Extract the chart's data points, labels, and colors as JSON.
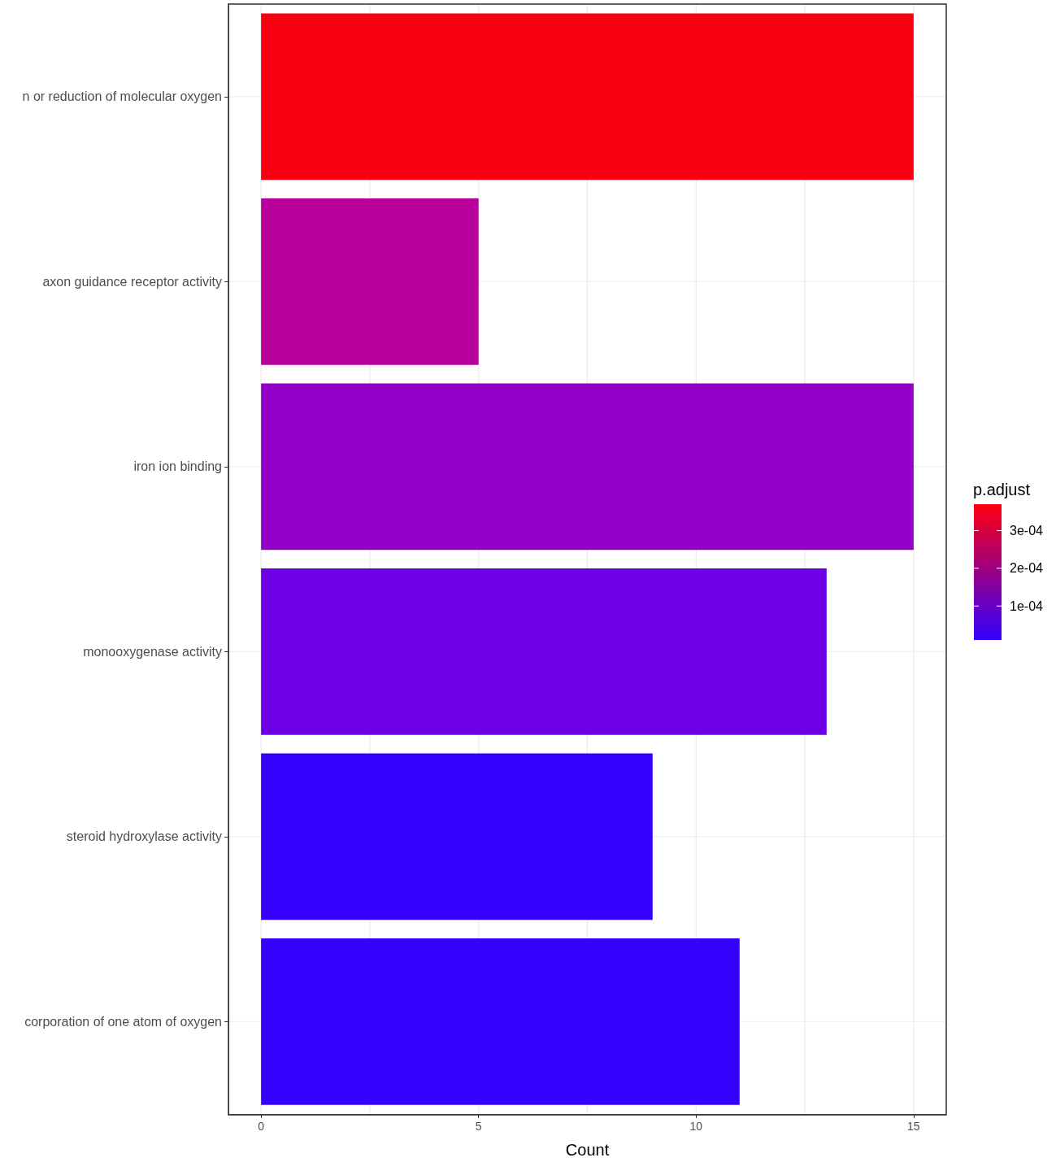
{
  "chart_data": {
    "type": "bar",
    "orientation": "horizontal",
    "xlabel": "Count",
    "clabel": "p.adjust",
    "categories": [
      "n or reduction of molecular oxygen",
      "axon guidance receptor activity",
      "iron ion binding",
      "monooxygenase activity",
      "steroid hydroxylase activity",
      "corporation of one atom of oxygen"
    ],
    "values": [
      15,
      5,
      15,
      13,
      9,
      11
    ],
    "colors": [
      "#f80010",
      "#b8009a",
      "#9300c8",
      "#6d00e6",
      "#3500fe",
      "#3600fe"
    ],
    "xlim": [
      -0.75,
      15.75
    ],
    "xticks": [
      0,
      {
        "value": 2.5,
        "label": null
      },
      5,
      {
        "value": 7.5,
        "label": null
      },
      10,
      {
        "value": 12.5,
        "label": null
      },
      15
    ],
    "clim": [
      1e-05,
      0.00037
    ],
    "cticks": [
      {
        "value": 0.0001,
        "label": "1e-04"
      },
      {
        "value": 0.0002,
        "label": "2e-04"
      },
      {
        "value": 0.0003,
        "label": "3e-04"
      }
    ],
    "grid": true
  }
}
